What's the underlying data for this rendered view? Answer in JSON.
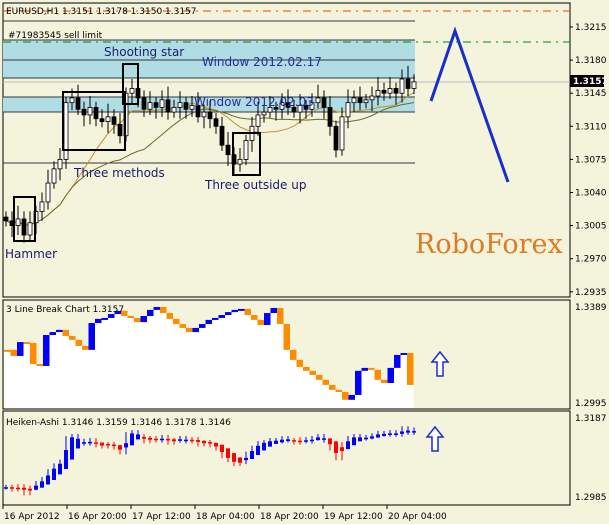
{
  "header": {
    "symbol_info": "EURUSD,H1  1.3151 1.3178 1.3150 1.3157",
    "order_label": "#71983545 sell limit"
  },
  "annotations": {
    "shooting_star": "Shooting star",
    "window_1": "Window 2012.02.17",
    "window_2": "Window 2012.02.03",
    "three_methods": "Three methods",
    "three_outside_up": "Three outside up",
    "hammer": "Hammer"
  },
  "logo": "RoboForex",
  "colors": {
    "background": "#f4f3dc",
    "band": "#b0dde4",
    "bull_brick": "#0000ff",
    "bear_brick": "#ff8c00",
    "ha_up": "#0000ff",
    "ha_down": "#ff0000",
    "forecast": "#1a2ecc",
    "logo": "#e07a20"
  },
  "main_axis": {
    "ticks": [
      "1.3215",
      "1.3180",
      "1.3145",
      "1.3110",
      "1.3075",
      "1.3040",
      "1.3005",
      "1.2970",
      "1.2935"
    ],
    "current_price": "1.3157"
  },
  "line_break": {
    "label": "3 Line Break Chart 1.3157",
    "axis_ticks": [
      "1.3389",
      "1.2995"
    ]
  },
  "heiken_ashi": {
    "label": "Heiken-Ashi 1.3146 1.3159 1.3146 1.3178 1.3146",
    "axis_ticks": [
      "1.3187",
      "1.2985"
    ]
  },
  "time_axis": [
    "16 Apr 2012",
    "16 Apr 20:00",
    "17 Apr 12:00",
    "18 Apr 04:00",
    "18 Apr 20:00",
    "19 Apr 12:00",
    "20 Apr 04:00"
  ],
  "chart_data": [
    {
      "type": "candlestick",
      "title": "EURUSD,H1",
      "ylim": [
        1.2935,
        1.3235
      ],
      "closes": [
        1.301,
        1.3005,
        1.3012,
        1.2995,
        1.3008,
        1.302,
        1.303,
        1.305,
        1.3065,
        1.3075,
        1.3135,
        1.314,
        1.3128,
        1.3122,
        1.313,
        1.3118,
        1.3115,
        1.312,
        1.3112,
        1.31,
        1.3145,
        1.315,
        1.314,
        1.3128,
        1.3135,
        1.313,
        1.3138,
        1.3125,
        1.313,
        1.3135,
        1.3128,
        1.3132,
        1.312,
        1.3125,
        1.3118,
        1.311,
        1.309,
        1.308,
        1.307,
        1.3075,
        1.3095,
        1.311,
        1.3122,
        1.3125,
        1.313,
        1.3128,
        1.3135,
        1.313,
        1.3125,
        1.3132,
        1.3128,
        1.3135,
        1.314,
        1.313,
        1.311,
        1.3085,
        1.312,
        1.3135,
        1.314,
        1.3135,
        1.3138,
        1.3142,
        1.3148,
        1.3145,
        1.315,
        1.3145,
        1.316,
        1.315,
        1.3157
      ]
    },
    {
      "type": "line_break",
      "ylim": [
        1.2995,
        1.3389
      ],
      "levels": [
        1.3209,
        1.3184,
        1.3241,
        1.3237,
        1.3151,
        1.3143,
        1.327,
        1.3282,
        1.3291,
        1.3266,
        1.325,
        1.3225,
        1.3209,
        1.3319,
        1.3336,
        1.334,
        1.3356,
        1.3369,
        1.3348,
        1.334,
        1.3323,
        1.3348,
        1.3373,
        1.3385,
        1.336,
        1.3336,
        1.3315,
        1.3299,
        1.3282,
        1.3299,
        1.3315,
        1.3332,
        1.334,
        1.3352,
        1.3364,
        1.3373,
        1.3377,
        1.3352,
        1.3332,
        1.3311,
        1.336,
        1.3381,
        1.3315,
        1.3209,
        1.3168,
        1.3139,
        1.3123,
        1.3106,
        1.3086,
        1.3065,
        1.3045,
        1.3036,
        1.3004,
        1.3024,
        1.3123,
        1.3135,
        1.3127,
        1.3086,
        1.3073,
        1.3135,
        1.3188,
        1.3196,
        1.3065
      ]
    },
    {
      "type": "heiken_ashi",
      "ylim": [
        1.2985,
        1.3187
      ]
    }
  ]
}
